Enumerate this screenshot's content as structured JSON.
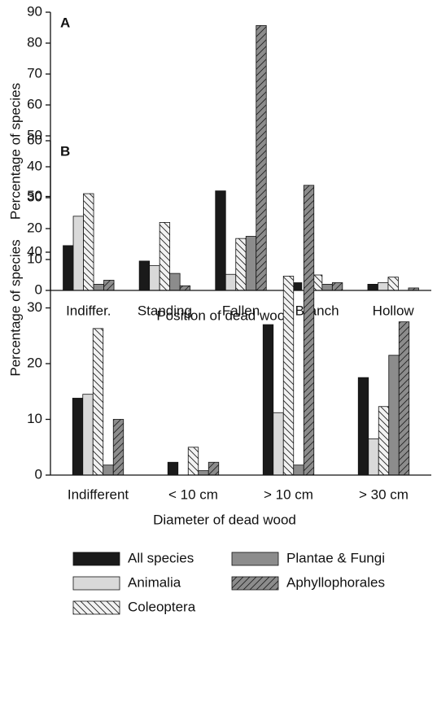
{
  "chart_data": [
    {
      "type": "bar",
      "panel": "A",
      "xlabel": "Position of dead wood",
      "ylabel": "Percentage of species",
      "categories": [
        "Indiffer.",
        "Standing",
        "Fallen",
        "Branch",
        "Hollow"
      ],
      "ylim": [
        0,
        90
      ],
      "yticks": [
        0,
        10,
        20,
        30,
        40,
        50,
        60,
        70,
        80,
        90
      ],
      "series": [
        {
          "name": "All species",
          "color": "#1a1a1a",
          "pattern": "none",
          "values": [
            14.5,
            9.5,
            32.2,
            2.5,
            2
          ]
        },
        {
          "name": "Animalia",
          "color": "#d9d9d9",
          "pattern": "none",
          "values": [
            24,
            8,
            5.2,
            0,
            2.5
          ]
        },
        {
          "name": "Coleoptera",
          "color": "#f2f2f2",
          "pattern": "back",
          "values": [
            31.3,
            22,
            16.8,
            5,
            4.3
          ]
        },
        {
          "name": "Plantae & Fungi",
          "color": "#8c8c8c",
          "pattern": "none",
          "values": [
            2,
            5.5,
            17.5,
            2,
            0
          ]
        },
        {
          "name": "Aphyllophorales",
          "color": "#8c8c8c",
          "pattern": "forward",
          "values": [
            3.3,
            1.5,
            85.7,
            2.5,
            0.8
          ]
        }
      ]
    },
    {
      "type": "bar",
      "panel": "B",
      "xlabel": "Diameter of dead wood",
      "ylabel": "Percentage of species",
      "categories": [
        "Indifferent",
        "< 10 cm",
        "> 10 cm",
        "> 30 cm"
      ],
      "ylim": [
        0,
        60
      ],
      "yticks": [
        0,
        10,
        20,
        30,
        40,
        50,
        60
      ],
      "series": [
        {
          "color": "#1a1a1a",
          "pattern": "none",
          "values": [
            13.8,
            2.3,
            27,
            17.5
          ]
        },
        {
          "color": "#d9d9d9",
          "pattern": "none",
          "values": [
            14.5,
            0,
            11.2,
            6.5
          ]
        },
        {
          "color": "#f2f2f2",
          "pattern": "back",
          "values": [
            26.3,
            5,
            35.7,
            12.3
          ]
        },
        {
          "color": "#8c8c8c",
          "pattern": "none",
          "values": [
            1.8,
            0.8,
            1.8,
            21.5
          ]
        },
        {
          "color": "#8c8c8c",
          "pattern": "forward",
          "values": [
            10,
            2.3,
            52,
            27.5
          ]
        }
      ]
    }
  ]
}
